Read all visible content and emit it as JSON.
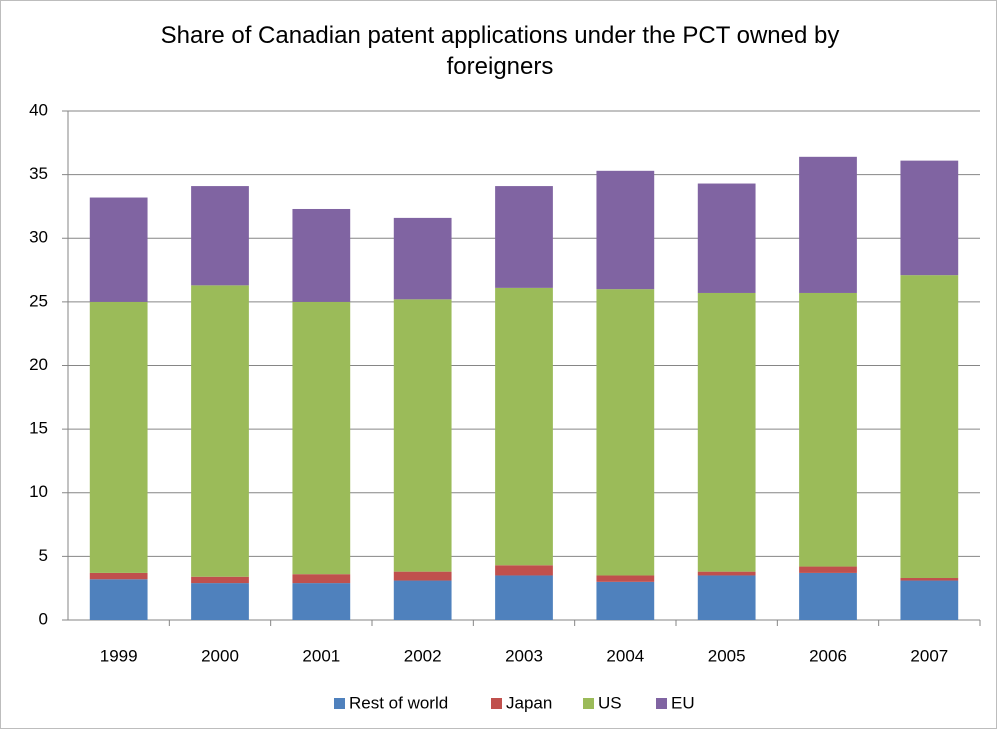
{
  "chart_data": {
    "type": "stacked_bar",
    "title": "Share of Canadian patent applications under the PCT owned by foreigners",
    "categories": [
      "1999",
      "2000",
      "2001",
      "2002",
      "2003",
      "2004",
      "2005",
      "2006",
      "2007"
    ],
    "series": [
      {
        "name": "Rest of world",
        "color": "#4f81bd",
        "values": [
          3.2,
          2.9,
          2.9,
          3.1,
          3.5,
          3.0,
          3.5,
          3.7,
          3.1
        ]
      },
      {
        "name": "Japan",
        "color": "#c0504d",
        "values": [
          0.5,
          0.5,
          0.7,
          0.7,
          0.8,
          0.5,
          0.3,
          0.5,
          0.2
        ]
      },
      {
        "name": "US",
        "color": "#9bbb59",
        "values": [
          21.3,
          22.9,
          21.4,
          21.4,
          21.8,
          22.5,
          21.9,
          21.5,
          23.8
        ]
      },
      {
        "name": "EU",
        "color": "#8064a2",
        "values": [
          8.2,
          7.8,
          7.3,
          6.4,
          8.0,
          9.3,
          8.6,
          10.7,
          9.0
        ]
      }
    ],
    "ylim": [
      0,
      40
    ],
    "yticks": [
      0,
      5,
      10,
      15,
      20,
      25,
      30,
      35,
      40
    ],
    "grid": true,
    "legend": "bottom"
  }
}
